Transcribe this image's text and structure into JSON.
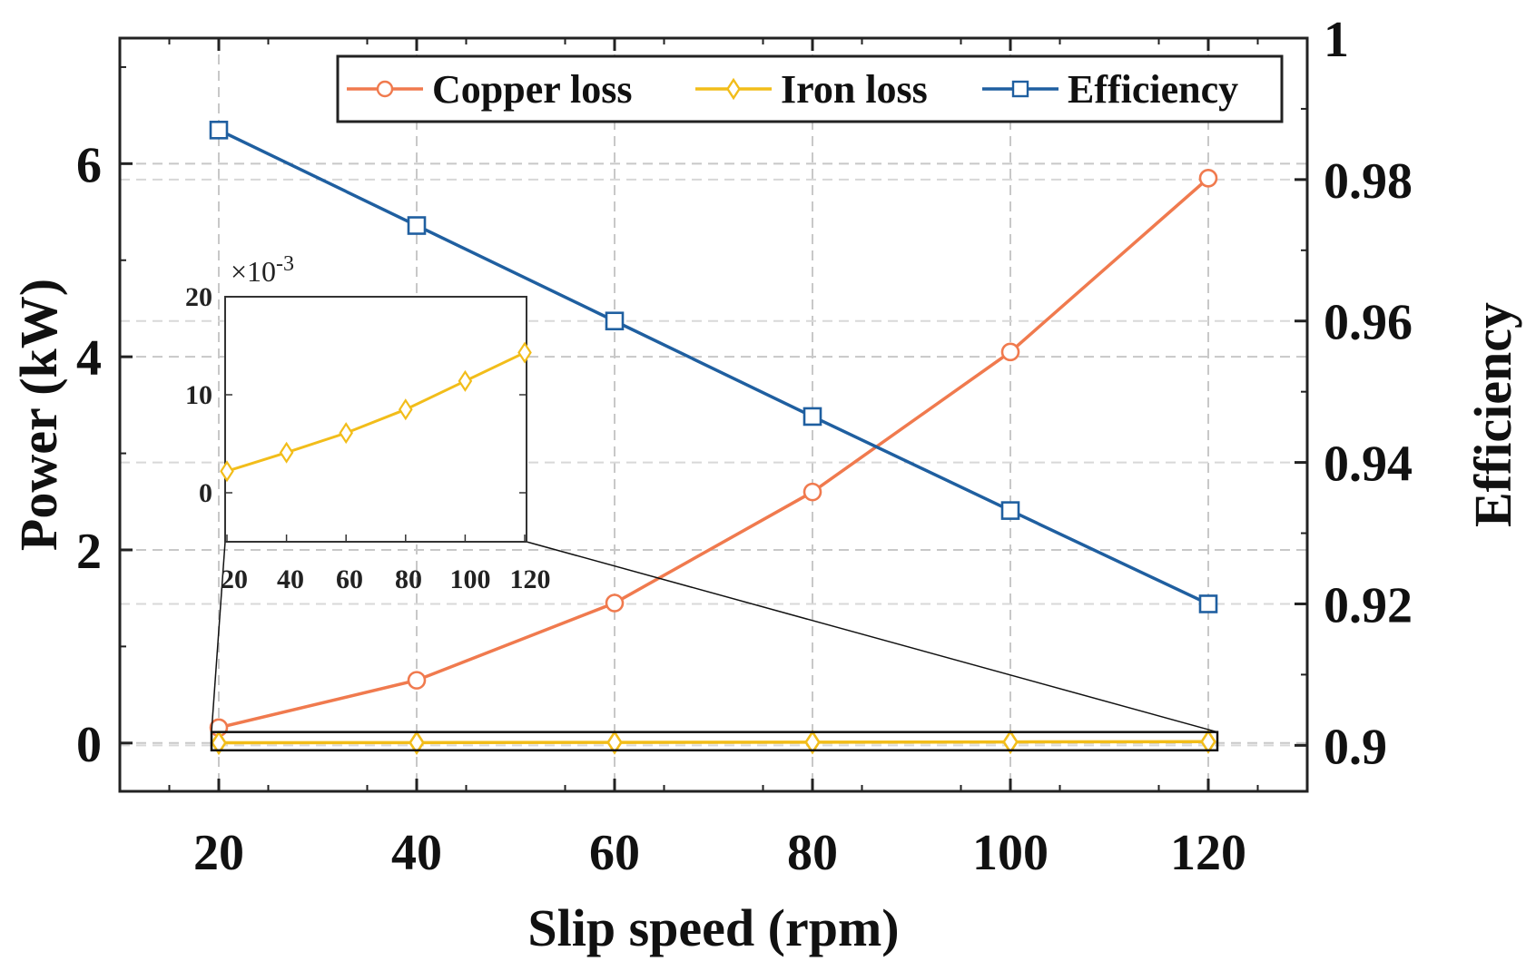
{
  "chart_data": {
    "type": "line",
    "xlabel": "Slip speed (rpm)",
    "ylabel_left": "Power (kW)",
    "ylabel_right": "Efficiency",
    "x": [
      20,
      40,
      60,
      80,
      100,
      120
    ],
    "xlim": [
      10,
      130
    ],
    "xticks": [
      20,
      40,
      60,
      80,
      100,
      120
    ],
    "ylim_left": [
      -0.5,
      7.3
    ],
    "yticks_left": [
      0,
      2,
      4,
      6
    ],
    "ylim_right": [
      0.8935,
      1.0
    ],
    "yticks_right": [
      0.9,
      0.92,
      0.94,
      0.96,
      0.98,
      1
    ],
    "grid": true,
    "legend_position": "top-right",
    "series": [
      {
        "name": "Copper loss",
        "axis": "left",
        "color": "#f07a4e",
        "marker": "circle",
        "values": [
          0.16,
          0.65,
          1.45,
          2.6,
          4.05,
          5.85
        ]
      },
      {
        "name": "Iron loss",
        "axis": "left",
        "color": "#f2bd1a",
        "marker": "diamond",
        "values": [
          0.0022,
          0.0041,
          0.0061,
          0.0085,
          0.0114,
          0.0143
        ]
      },
      {
        "name": "Efficiency",
        "axis": "right",
        "color": "#1f5fa0",
        "marker": "square",
        "values": [
          0.987,
          0.9735,
          0.96,
          0.9465,
          0.9332,
          0.92
        ]
      }
    ],
    "inset": {
      "series": "Iron loss",
      "x": [
        20,
        40,
        60,
        80,
        100,
        120
      ],
      "values": [
        2.2,
        4.1,
        6.1,
        8.5,
        11.4,
        14.3
      ],
      "xticks": [
        20,
        40,
        60,
        80,
        100,
        120
      ],
      "ylim": [
        -5,
        20
      ],
      "yticks": [
        0,
        10,
        20
      ],
      "exponent_label": "×10",
      "exponent_power": "-3"
    }
  }
}
